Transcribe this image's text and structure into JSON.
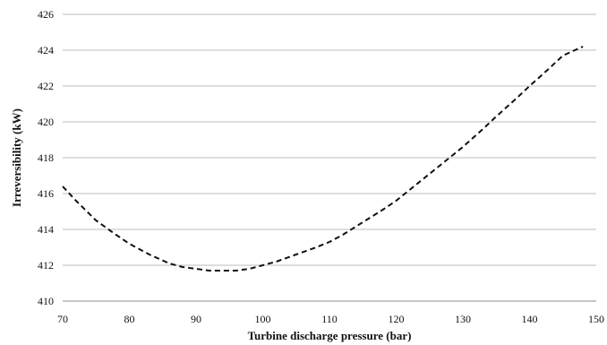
{
  "chart_data": {
    "type": "line",
    "title": "",
    "xlabel": "Turbine discharge pressure (bar)",
    "ylabel": "Irreversibility (kW)",
    "xlim": [
      70,
      150
    ],
    "ylim": [
      410,
      426
    ],
    "x_ticks": [
      70,
      80,
      90,
      100,
      110,
      120,
      130,
      140,
      150
    ],
    "y_ticks": [
      410,
      412,
      414,
      416,
      418,
      420,
      422,
      424,
      426
    ],
    "grid": {
      "horizontal": true,
      "vertical": false
    },
    "legend": "none",
    "series": [
      {
        "color": "#111111",
        "line_style": "dashed",
        "x": [
          70,
          72,
          75,
          78,
          80,
          83,
          86,
          88,
          90,
          92,
          94,
          96,
          98,
          100,
          102,
          105,
          108,
          110,
          112,
          115,
          118,
          120,
          123,
          125,
          128,
          130,
          133,
          135,
          138,
          140,
          143,
          145,
          148
        ],
        "y": [
          416.4,
          415.6,
          414.5,
          413.7,
          413.2,
          412.6,
          412.1,
          411.9,
          411.8,
          411.7,
          411.7,
          411.7,
          411.8,
          412.0,
          412.2,
          412.6,
          413.0,
          413.3,
          413.7,
          414.4,
          415.1,
          415.6,
          416.5,
          417.1,
          418.0,
          418.6,
          419.6,
          420.3,
          421.3,
          422.0,
          423.0,
          423.7,
          424.2
        ]
      }
    ]
  }
}
